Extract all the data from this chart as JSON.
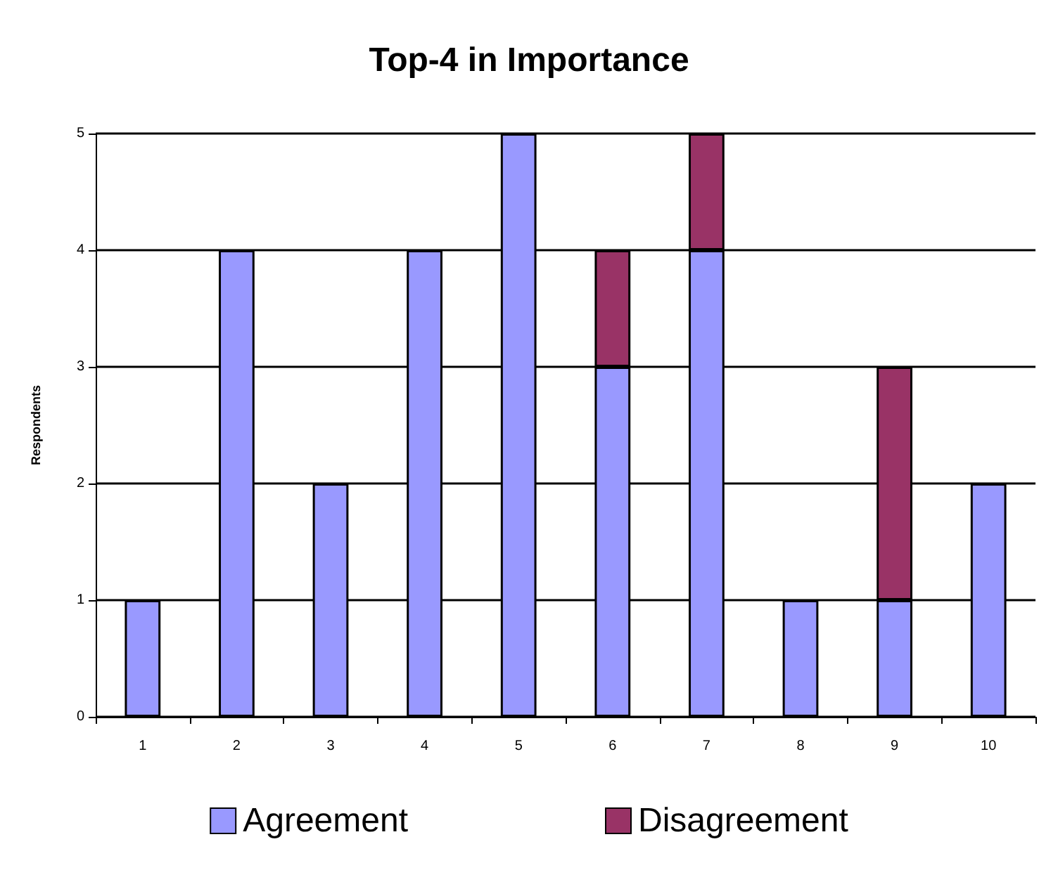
{
  "chart_data": {
    "type": "bar",
    "title": "Top-4 in Importance",
    "ylabel": "Respondents",
    "categories": [
      "1",
      "2",
      "3",
      "4",
      "5",
      "6",
      "7",
      "8",
      "9",
      "10"
    ],
    "stacked": true,
    "series": [
      {
        "name": "Agreement",
        "color": "#9999ff",
        "values": [
          1,
          4,
          2,
          4,
          5,
          3,
          4,
          1,
          1,
          2
        ]
      },
      {
        "name": "Disagreement",
        "color": "#993366",
        "values": [
          null,
          null,
          null,
          null,
          null,
          1,
          1,
          null,
          2,
          null
        ]
      }
    ],
    "ylim": [
      0,
      5
    ],
    "yticks": [
      0,
      1,
      2,
      3,
      4,
      5
    ],
    "grid": "y",
    "legend": "bottom"
  }
}
